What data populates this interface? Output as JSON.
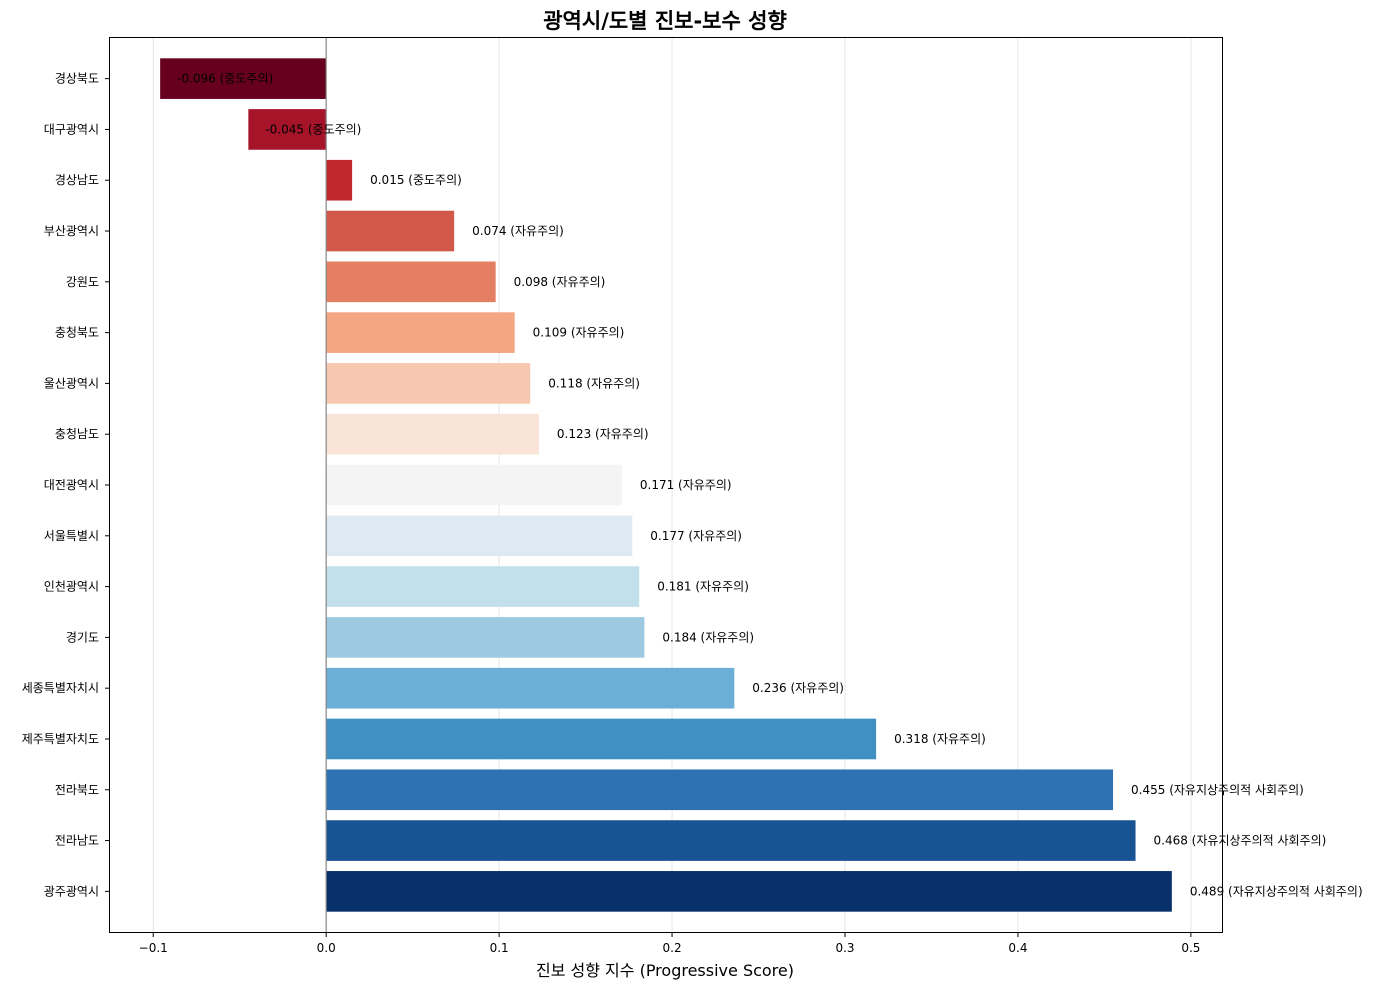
{
  "chart_data": {
    "type": "bar",
    "orientation": "horizontal",
    "title": "광역시/도별 진보-보수 성향",
    "xlabel": "진보 성향 지수 (Progressive Score)",
    "ylabel": "",
    "xlim": [
      -0.125,
      0.518
    ],
    "xticks": [
      -0.1,
      0.0,
      0.1,
      0.2,
      0.3,
      0.4,
      0.5
    ],
    "xtick_labels": [
      "−0.1",
      "0.0",
      "0.1",
      "0.2",
      "0.3",
      "0.4",
      "0.5"
    ],
    "grid": "x",
    "zero_line": true,
    "categories": [
      "경상북도",
      "대구광역시",
      "경상남도",
      "부산광역시",
      "강원도",
      "충청북도",
      "울산광역시",
      "충청남도",
      "대전광역시",
      "서울특별시",
      "인천광역시",
      "경기도",
      "세종특별자치시",
      "제주특별자치도",
      "전라북도",
      "전라남도",
      "광주광역시"
    ],
    "values": [
      -0.096,
      -0.045,
      0.015,
      0.074,
      0.098,
      0.109,
      0.118,
      0.123,
      0.171,
      0.177,
      0.181,
      0.184,
      0.236,
      0.318,
      0.455,
      0.468,
      0.489
    ],
    "data_labels": [
      "-0.096 (중도주의)",
      "-0.045 (중도주의)",
      "0.015 (중도주의)",
      "0.074 (자유주의)",
      "0.098 (자유주의)",
      "0.109 (자유주의)",
      "0.118 (자유주의)",
      "0.123 (자유주의)",
      "0.171 (자유주의)",
      "0.177 (자유주의)",
      "0.181 (자유주의)",
      "0.184 (자유주의)",
      "0.236 (자유주의)",
      "0.318 (자유주의)",
      "0.455 (자유지상주의적 사회주의)",
      "0.468 (자유지상주의적 사회주의)",
      "0.489 (자유지상주의적 사회주의)"
    ],
    "colors": [
      "#67001f",
      "#a51429",
      "#c0282e",
      "#d25849",
      "#e47f64",
      "#f4a582",
      "#f8c7b0",
      "#fae3d8",
      "#f4f4f4",
      "#ddeaf3",
      "#c2dfec",
      "#9ecae1",
      "#6baed6",
      "#4190c3",
      "#2e72b3",
      "#185393",
      "#08306b"
    ]
  }
}
